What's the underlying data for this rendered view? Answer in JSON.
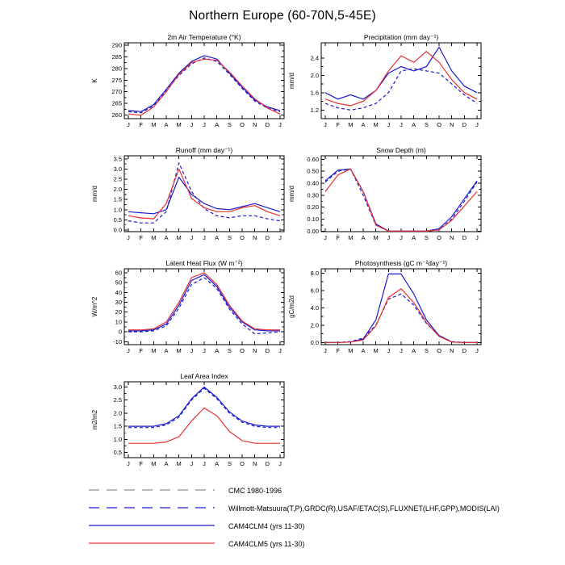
{
  "title": "Northern Europe (60-70N,5-45E)",
  "months": [
    "J",
    "F",
    "M",
    "A",
    "M",
    "J",
    "J",
    "A",
    "S",
    "O",
    "N",
    "D",
    "J"
  ],
  "colors": {
    "blue": "#1a1ad1",
    "red": "#e83030",
    "gray": "#8c8c8c",
    "axis": "#000000"
  },
  "legend": [
    {
      "label": "CMC 1980-1996",
      "color": "#8c8c8c",
      "dash": "long"
    },
    {
      "label": "Willmott-Matsuura(T,P),GRDC(R),USAF/ETAC(S),FLUXNET(LHF,GPP),MODIS(LAI)",
      "color": "#1a1ad1",
      "dash": "long"
    },
    {
      "label": "CAM4CLM4 (yrs 11-30)",
      "color": "#1a1ad1",
      "dash": "solid"
    },
    {
      "label": "CAM4CLM5 (yrs 11-30)",
      "color": "#e83030",
      "dash": "solid"
    }
  ],
  "chart_data": [
    {
      "id": "air-temperature",
      "type": "line",
      "title": "2m Air Temperature (°K)",
      "ylabel": "K",
      "ylim": [
        258.5,
        291
      ],
      "yticks": [
        "260",
        "265",
        "270",
        "275",
        "280",
        "285",
        "290"
      ],
      "series": [
        {
          "name": "observations",
          "color": "#1a1ad1",
          "dash": true,
          "values": [
            261.5,
            261.0,
            264.0,
            270.5,
            277.0,
            282.0,
            284.5,
            283.0,
            277.5,
            271.5,
            266.0,
            263.0,
            261.5
          ]
        },
        {
          "name": "CAM4CLM4",
          "color": "#1a1ad1",
          "dash": false,
          "values": [
            262.0,
            261.5,
            264.5,
            271.0,
            278.0,
            283.0,
            285.5,
            284.0,
            278.0,
            272.0,
            266.5,
            263.5,
            262.0
          ]
        },
        {
          "name": "CAM4CLM5",
          "color": "#e83030",
          "dash": false,
          "values": [
            260.5,
            260.0,
            263.5,
            270.0,
            277.5,
            282.5,
            284.0,
            283.5,
            278.5,
            272.5,
            267.0,
            263.0,
            260.5
          ]
        }
      ]
    },
    {
      "id": "precipitation",
      "type": "line",
      "title": "Precipitation (mm day⁻¹)",
      "ylabel": "mm/d",
      "ylim": [
        1.0,
        2.75
      ],
      "yticks": [
        "1.2",
        "1.6",
        "2.0",
        "2.4"
      ],
      "series": [
        {
          "name": "observations",
          "color": "#1a1ad1",
          "dash": true,
          "values": [
            1.35,
            1.25,
            1.2,
            1.25,
            1.35,
            1.6,
            2.1,
            2.15,
            2.1,
            2.05,
            1.8,
            1.55,
            1.35
          ]
        },
        {
          "name": "CAM4CLM4",
          "color": "#1a1ad1",
          "dash": false,
          "values": [
            1.6,
            1.45,
            1.55,
            1.45,
            1.65,
            2.05,
            2.2,
            2.1,
            2.2,
            2.65,
            2.1,
            1.75,
            1.6
          ]
        },
        {
          "name": "CAM4CLM5",
          "color": "#e83030",
          "dash": false,
          "values": [
            1.45,
            1.35,
            1.3,
            1.4,
            1.65,
            2.1,
            2.45,
            2.3,
            2.55,
            2.3,
            1.9,
            1.6,
            1.45
          ]
        }
      ]
    },
    {
      "id": "runoff",
      "type": "line",
      "title": "Runoff (mm day⁻¹)",
      "ylabel": "mm/d",
      "ylim": [
        -0.08,
        3.65
      ],
      "yticks": [
        "0.0",
        "0.5",
        "1.0",
        "1.5",
        "2.0",
        "2.5",
        "3.0",
        "3.5"
      ],
      "series": [
        {
          "name": "observations",
          "color": "#1a1ad1",
          "dash": true,
          "values": [
            0.45,
            0.35,
            0.35,
            0.9,
            3.3,
            1.9,
            1.05,
            0.7,
            0.6,
            0.7,
            0.7,
            0.55,
            0.45
          ]
        },
        {
          "name": "CAM4CLM4",
          "color": "#1a1ad1",
          "dash": false,
          "values": [
            0.9,
            0.85,
            0.8,
            1.0,
            2.6,
            1.75,
            1.3,
            1.05,
            1.0,
            1.15,
            1.3,
            1.1,
            0.9
          ]
        },
        {
          "name": "CAM4CLM5",
          "color": "#e83030",
          "dash": false,
          "values": [
            0.7,
            0.6,
            0.55,
            1.3,
            3.0,
            1.55,
            1.1,
            0.9,
            0.9,
            1.1,
            1.2,
            0.9,
            0.7
          ]
        }
      ]
    },
    {
      "id": "snow-depth",
      "type": "line",
      "title": "Snow Depth (m)",
      "ylabel": "mm/d",
      "ylim": [
        -0.005,
        0.63
      ],
      "yticks": [
        "0.00",
        "0.10",
        "0.20",
        "0.30",
        "0.40",
        "0.50",
        "0.60"
      ],
      "series": [
        {
          "name": "observations",
          "color": "#1a1ad1",
          "dash": true,
          "values": [
            0.41,
            0.5,
            0.52,
            0.3,
            0.05,
            0.0,
            0.0,
            0.0,
            0.0,
            0.01,
            0.1,
            0.25,
            0.41
          ]
        },
        {
          "name": "CAM4CLM4",
          "color": "#1a1ad1",
          "dash": false,
          "values": [
            0.42,
            0.51,
            0.52,
            0.33,
            0.06,
            0.0,
            0.0,
            0.0,
            0.0,
            0.02,
            0.12,
            0.27,
            0.42
          ]
        },
        {
          "name": "CAM4CLM5",
          "color": "#e83030",
          "dash": false,
          "values": [
            0.33,
            0.47,
            0.52,
            0.33,
            0.05,
            0.0,
            0.0,
            0.0,
            0.0,
            0.01,
            0.09,
            0.21,
            0.33
          ]
        }
      ]
    },
    {
      "id": "latent-heat-flux",
      "type": "line",
      "title": "Latent Heat Flux (W m⁻²)",
      "ylabel": "W/m^2",
      "ylim": [
        -13,
        64
      ],
      "yticks": [
        "-10",
        "0",
        "10",
        "20",
        "30",
        "40",
        "50",
        "60"
      ],
      "series": [
        {
          "name": "observations",
          "color": "#1a1ad1",
          "dash": true,
          "values": [
            0,
            0,
            1,
            6,
            24,
            48,
            55,
            44,
            23,
            8,
            -2,
            -1,
            0
          ]
        },
        {
          "name": "CAM4CLM4",
          "color": "#1a1ad1",
          "dash": false,
          "values": [
            1,
            1,
            2,
            8,
            27,
            52,
            58,
            46,
            25,
            10,
            2,
            1,
            1
          ]
        },
        {
          "name": "CAM4CLM5",
          "color": "#e83030",
          "dash": false,
          "values": [
            2,
            2,
            3,
            10,
            30,
            55,
            60,
            48,
            27,
            11,
            3,
            2,
            2
          ]
        }
      ]
    },
    {
      "id": "photosynthesis",
      "type": "line",
      "title": "Photosynthesis (gC m⁻²day⁻¹)",
      "ylabel": "gC/m2d",
      "ylim": [
        -0.25,
        8.5
      ],
      "yticks": [
        "0.0",
        "2.0",
        "4.0",
        "6.0",
        "8.0"
      ],
      "series": [
        {
          "name": "observations",
          "color": "#1a1ad1",
          "dash": true,
          "values": [
            0.0,
            0.0,
            0.1,
            0.5,
            2.0,
            5.0,
            5.6,
            4.3,
            2.2,
            0.8,
            0.1,
            0.0,
            0.0
          ]
        },
        {
          "name": "CAM4CLM4",
          "color": "#1a1ad1",
          "dash": false,
          "values": [
            0.0,
            0.0,
            0.05,
            0.4,
            2.6,
            7.9,
            7.9,
            5.6,
            2.6,
            0.8,
            0.05,
            0.0,
            0.0
          ]
        },
        {
          "name": "CAM4CLM5",
          "color": "#e83030",
          "dash": false,
          "values": [
            0.0,
            0.0,
            0.05,
            0.3,
            1.9,
            5.2,
            6.2,
            4.6,
            2.3,
            0.7,
            0.05,
            0.0,
            0.0
          ]
        }
      ]
    },
    {
      "id": "leaf-area-index",
      "type": "line",
      "title": "Leaf Area Index",
      "ylabel": "m2/m2",
      "ylim": [
        0.3,
        3.2
      ],
      "yticks": [
        "0.5",
        "1.0",
        "1.5",
        "2.0",
        "2.5",
        "3.0"
      ],
      "series": [
        {
          "name": "observations",
          "color": "#1a1ad1",
          "dash": true,
          "values": [
            1.45,
            1.45,
            1.45,
            1.55,
            1.85,
            2.5,
            2.95,
            2.55,
            2.0,
            1.65,
            1.5,
            1.45,
            1.45
          ]
        },
        {
          "name": "CAM4CLM4",
          "color": "#1a1ad1",
          "dash": false,
          "values": [
            1.5,
            1.5,
            1.5,
            1.6,
            1.9,
            2.55,
            3.0,
            2.6,
            2.05,
            1.7,
            1.55,
            1.5,
            1.5
          ]
        },
        {
          "name": "CAM4CLM5",
          "color": "#e83030",
          "dash": false,
          "values": [
            0.85,
            0.85,
            0.85,
            0.9,
            1.1,
            1.7,
            2.2,
            1.9,
            1.3,
            0.95,
            0.85,
            0.85,
            0.85
          ]
        }
      ]
    }
  ]
}
